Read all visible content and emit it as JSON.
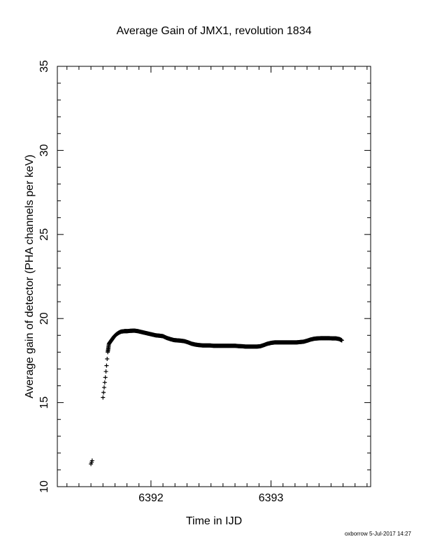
{
  "chart_data": {
    "type": "scatter",
    "title": "Average Gain of JMX1, revolution 1834",
    "xlabel": "Time in IJD",
    "ylabel": "Average gain of detector (PHA channels per keV)",
    "xlim": [
      6391.22,
      6393.83
    ],
    "ylim": [
      10,
      35
    ],
    "xticks": [
      6392,
      6393
    ],
    "yticks": [
      10,
      15,
      20,
      25,
      30,
      35
    ],
    "marker": "plus",
    "color": "#000000",
    "grid": false,
    "points": [
      [
        6391.5,
        11.35
      ],
      [
        6391.51,
        11.55
      ],
      [
        6391.505,
        11.45
      ],
      [
        6391.6,
        15.3
      ],
      [
        6391.605,
        15.6
      ],
      [
        6391.61,
        15.9
      ],
      [
        6391.615,
        16.2
      ],
      [
        6391.62,
        16.5
      ],
      [
        6391.625,
        16.85
      ],
      [
        6391.63,
        17.2
      ],
      [
        6391.635,
        17.6
      ],
      [
        6391.64,
        18.0
      ],
      [
        6391.65,
        18.5
      ],
      [
        6391.67,
        18.7
      ],
      [
        6391.69,
        18.9
      ],
      [
        6391.71,
        19.05
      ],
      [
        6391.73,
        19.15
      ],
      [
        6391.75,
        19.22
      ],
      [
        6391.78,
        19.25
      ],
      [
        6391.8,
        19.25
      ],
      [
        6391.83,
        19.27
      ],
      [
        6391.86,
        19.28
      ],
      [
        6391.89,
        19.25
      ],
      [
        6391.92,
        19.2
      ],
      [
        6391.95,
        19.15
      ],
      [
        6391.98,
        19.1
      ],
      [
        6392.01,
        19.05
      ],
      [
        6392.04,
        19.0
      ],
      [
        6392.07,
        18.98
      ],
      [
        6392.1,
        18.95
      ],
      [
        6392.13,
        18.85
      ],
      [
        6392.16,
        18.78
      ],
      [
        6392.19,
        18.72
      ],
      [
        6392.22,
        18.7
      ],
      [
        6392.25,
        18.68
      ],
      [
        6392.28,
        18.65
      ],
      [
        6392.31,
        18.58
      ],
      [
        6392.34,
        18.5
      ],
      [
        6392.37,
        18.45
      ],
      [
        6392.4,
        18.42
      ],
      [
        6392.43,
        18.4
      ],
      [
        6392.46,
        18.4
      ],
      [
        6392.49,
        18.4
      ],
      [
        6392.52,
        18.38
      ],
      [
        6392.55,
        18.38
      ],
      [
        6392.58,
        18.38
      ],
      [
        6392.61,
        18.38
      ],
      [
        6392.64,
        18.38
      ],
      [
        6392.67,
        18.38
      ],
      [
        6392.7,
        18.38
      ],
      [
        6392.73,
        18.36
      ],
      [
        6392.76,
        18.35
      ],
      [
        6392.79,
        18.33
      ],
      [
        6392.82,
        18.33
      ],
      [
        6392.85,
        18.33
      ],
      [
        6392.88,
        18.33
      ],
      [
        6392.91,
        18.35
      ],
      [
        6392.94,
        18.42
      ],
      [
        6392.97,
        18.5
      ],
      [
        6393.0,
        18.55
      ],
      [
        6393.03,
        18.58
      ],
      [
        6393.06,
        18.58
      ],
      [
        6393.09,
        18.58
      ],
      [
        6393.12,
        18.58
      ],
      [
        6393.15,
        18.58
      ],
      [
        6393.18,
        18.58
      ],
      [
        6393.21,
        18.58
      ],
      [
        6393.24,
        18.6
      ],
      [
        6393.27,
        18.62
      ],
      [
        6393.3,
        18.68
      ],
      [
        6393.33,
        18.75
      ],
      [
        6393.36,
        18.8
      ],
      [
        6393.39,
        18.82
      ],
      [
        6393.42,
        18.83
      ],
      [
        6393.45,
        18.83
      ],
      [
        6393.48,
        18.83
      ],
      [
        6393.51,
        18.82
      ],
      [
        6393.54,
        18.82
      ],
      [
        6393.57,
        18.78
      ],
      [
        6393.59,
        18.7
      ]
    ]
  },
  "footer": "oxborrow  5-Jul-2017 14:27"
}
